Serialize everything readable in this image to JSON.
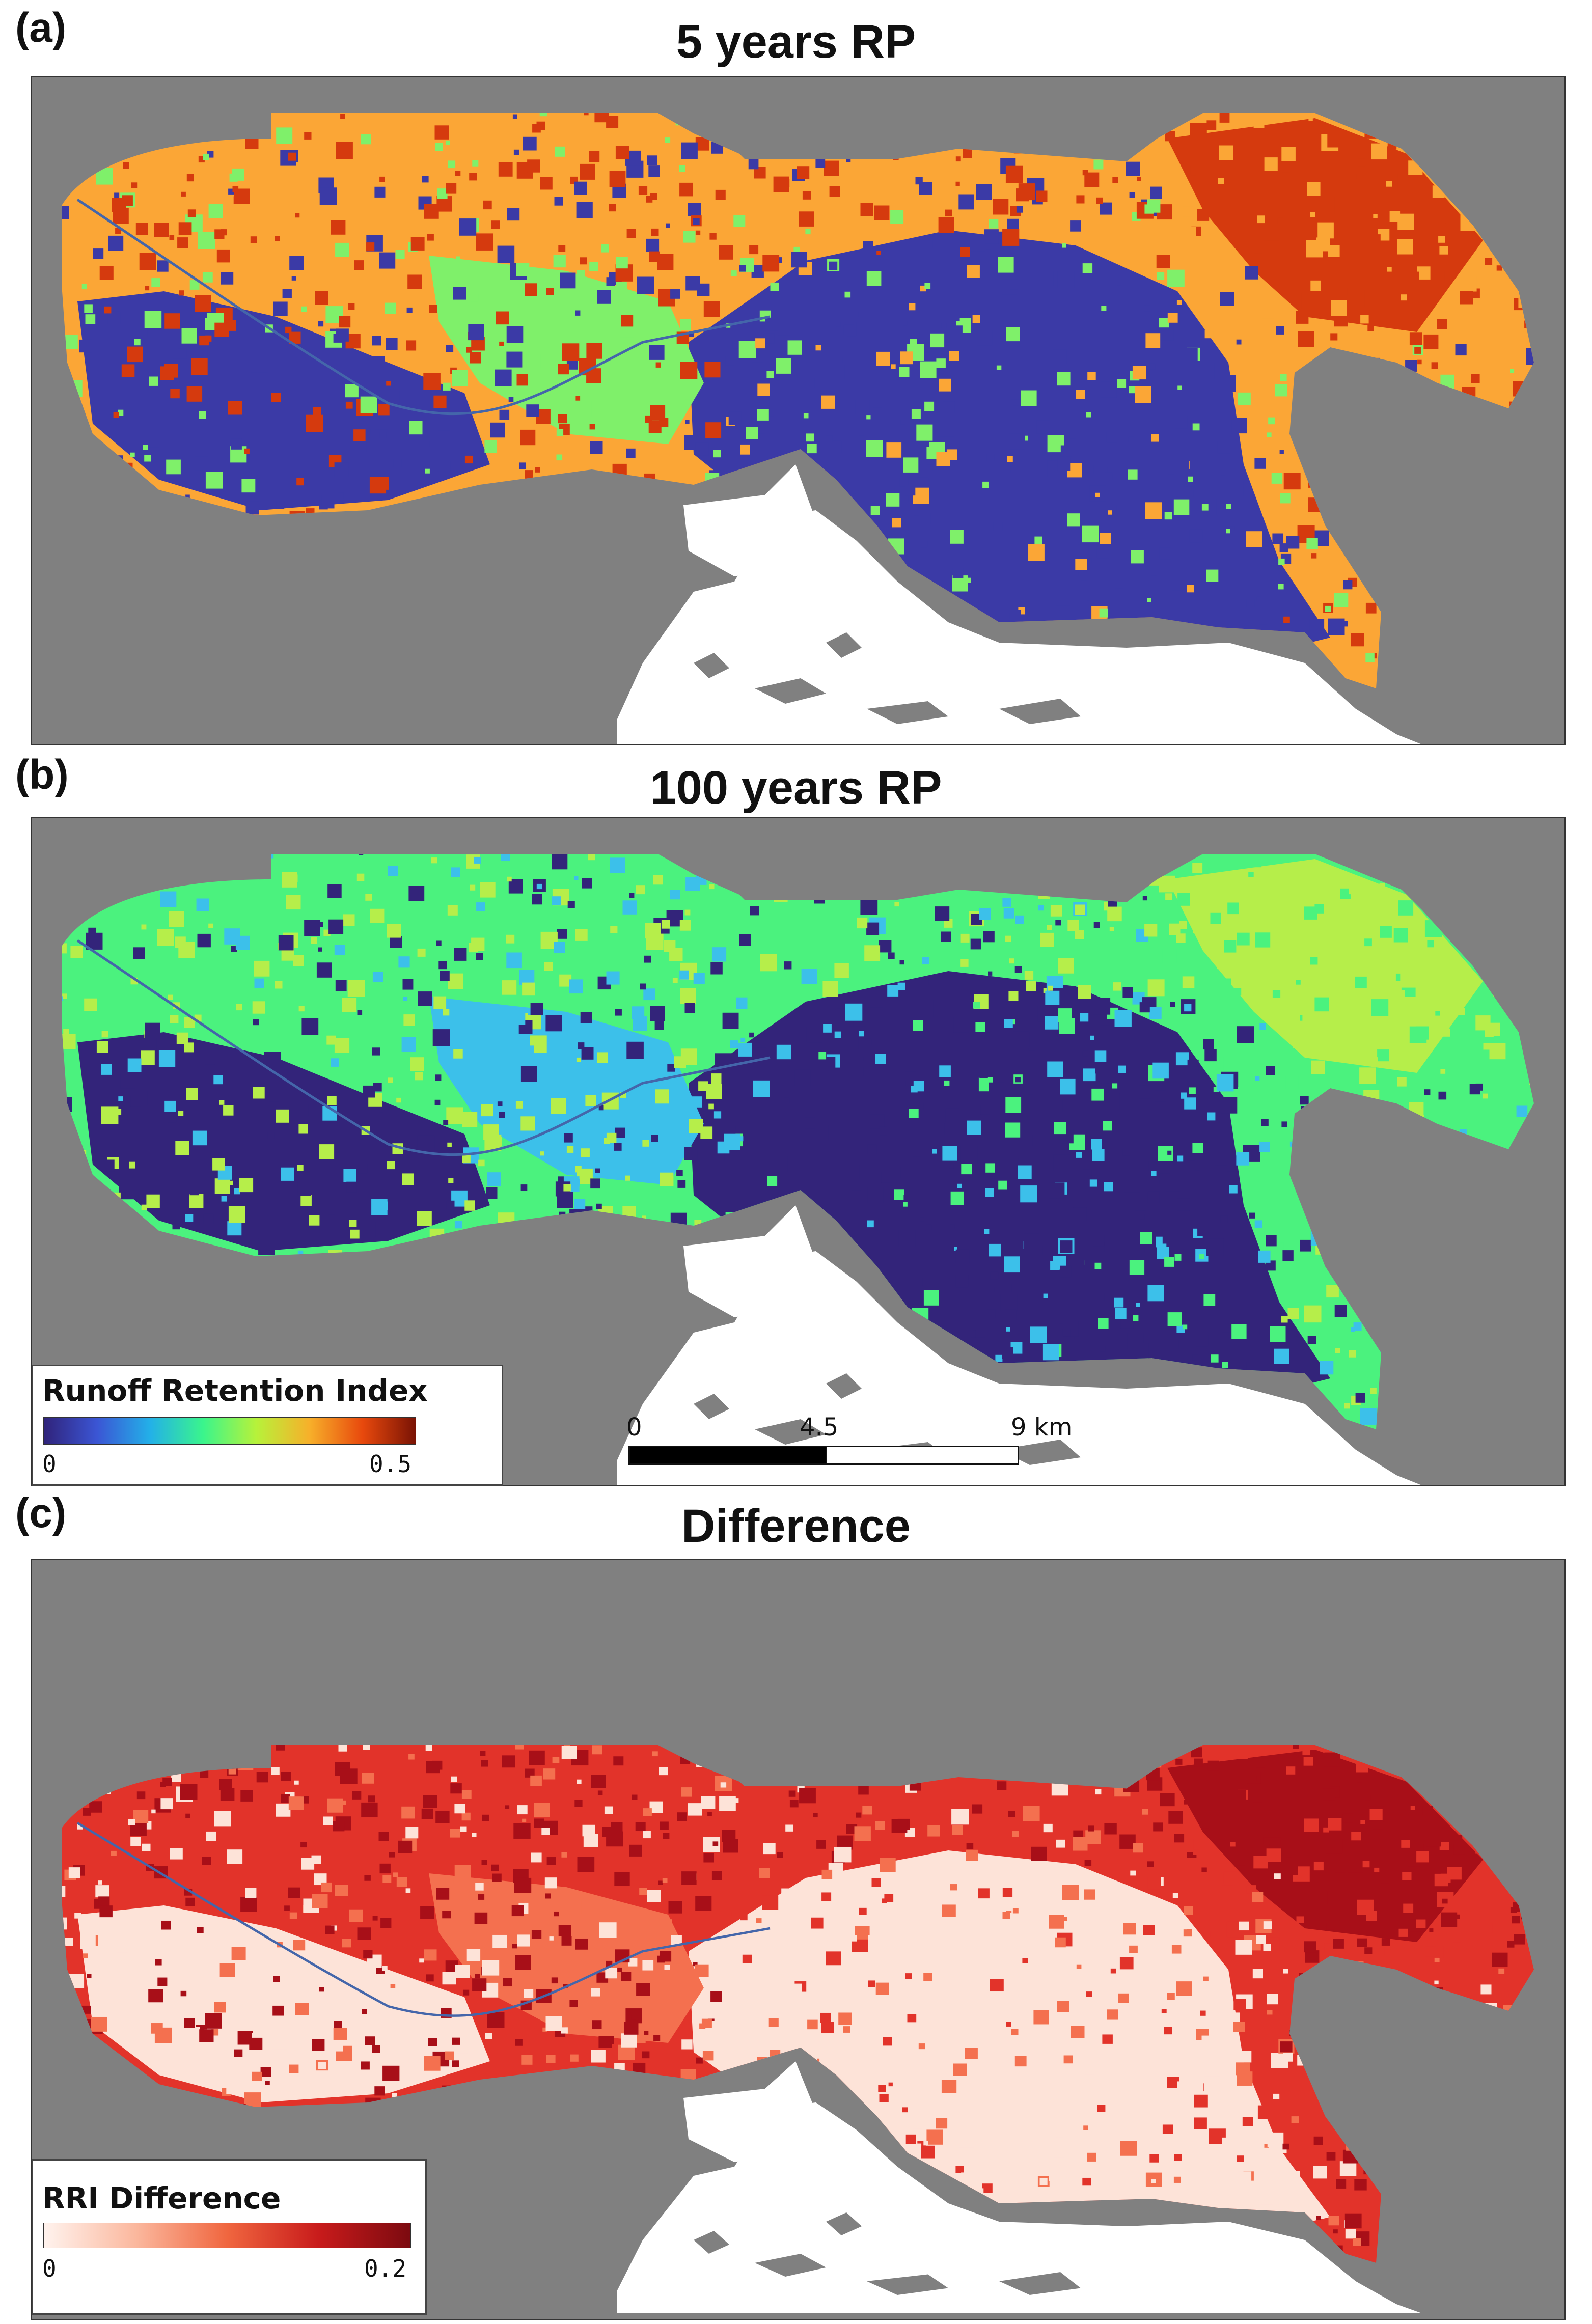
{
  "panels": [
    {
      "letter": "(a)",
      "title": "5 years RP"
    },
    {
      "letter": "(b)",
      "title": "100 years RP"
    },
    {
      "letter": "(c)",
      "title": "Difference"
    }
  ],
  "legend_rri": {
    "title": "Runoff Retention Index",
    "min_label": "0",
    "max_label": "0.5",
    "colormap": [
      "#30237a",
      "#3b55d4",
      "#23b0e8",
      "#3af58c",
      "#b7f23a",
      "#f7b02a",
      "#e8490d",
      "#7a1304"
    ]
  },
  "legend_diff": {
    "title": "RRI Difference",
    "min_label": "0",
    "max_label": "0.2",
    "colormap": [
      "#fff3ee",
      "#fbb89e",
      "#f0663f",
      "#c81b1b",
      "#7c0a10"
    ]
  },
  "scale_bar": {
    "labels": [
      "0",
      "4.5",
      "9 km"
    ]
  },
  "colors": {
    "sea": "#ffffff",
    "land_outside": "#808080",
    "panel_a_main": "#fba636",
    "panel_a_high": "#d53a0e",
    "panel_a_low": "#3b3aa6",
    "panel_a_mid": "#7ff06a",
    "panel_b_main": "#4bf27e",
    "panel_b_high": "#b6ee4a",
    "panel_b_low": "#33247a",
    "panel_b_mid": "#3cc0ea",
    "panel_c_main": "#e2332a",
    "panel_c_high": "#a80f18",
    "panel_c_low": "#fde3d8",
    "panel_c_mid": "#f4704f"
  }
}
